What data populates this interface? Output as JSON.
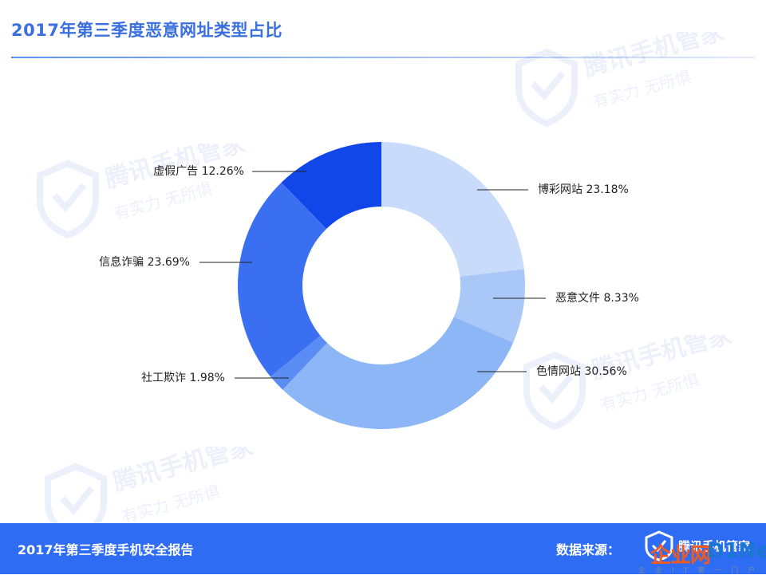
{
  "title": "2017年第三季度恶意网址类型占比",
  "watermark": {
    "brand": "腾讯手机管家",
    "slogan": "有实力 无所惧",
    "icon": "shield-check-icon"
  },
  "chart_data": {
    "type": "pie",
    "variant": "donut",
    "start_angle_deg": 0,
    "direction": "clockwise",
    "slices": [
      {
        "label": "博彩网站",
        "value": 23.18,
        "text": "博彩网站 23.18%",
        "color": "#c9dbfa"
      },
      {
        "label": "恶意文件",
        "value": 8.33,
        "text": "恶意文件 8.33%",
        "color": "#a9c8f8"
      },
      {
        "label": "色情网站",
        "value": 30.56,
        "text": "色情网站 30.56%",
        "color": "#8cb6f5"
      },
      {
        "label": "社工欺诈",
        "value": 1.98,
        "text": "社工欺诈 1.98%",
        "color": "#5b8cf3"
      },
      {
        "label": "信息诈骗",
        "value": 23.69,
        "text": "信息诈骗 23.69%",
        "color": "#3a6ff2"
      },
      {
        "label": "虚假广告",
        "value": 12.26,
        "text": "虚假广告 12.26%",
        "color": "#1147e9"
      }
    ]
  },
  "footer": {
    "report_title": "2017年第三季度手机安全报告",
    "source_label": "数据来源：",
    "source_brand": "腾讯手机管家",
    "source_icon": "shield-check-icon",
    "bg_color": "#2f6cf4"
  },
  "overlay": {
    "site_mark": "企业网",
    "site_brand": "D1Net",
    "site_tagline": "企业IT第一门户"
  }
}
